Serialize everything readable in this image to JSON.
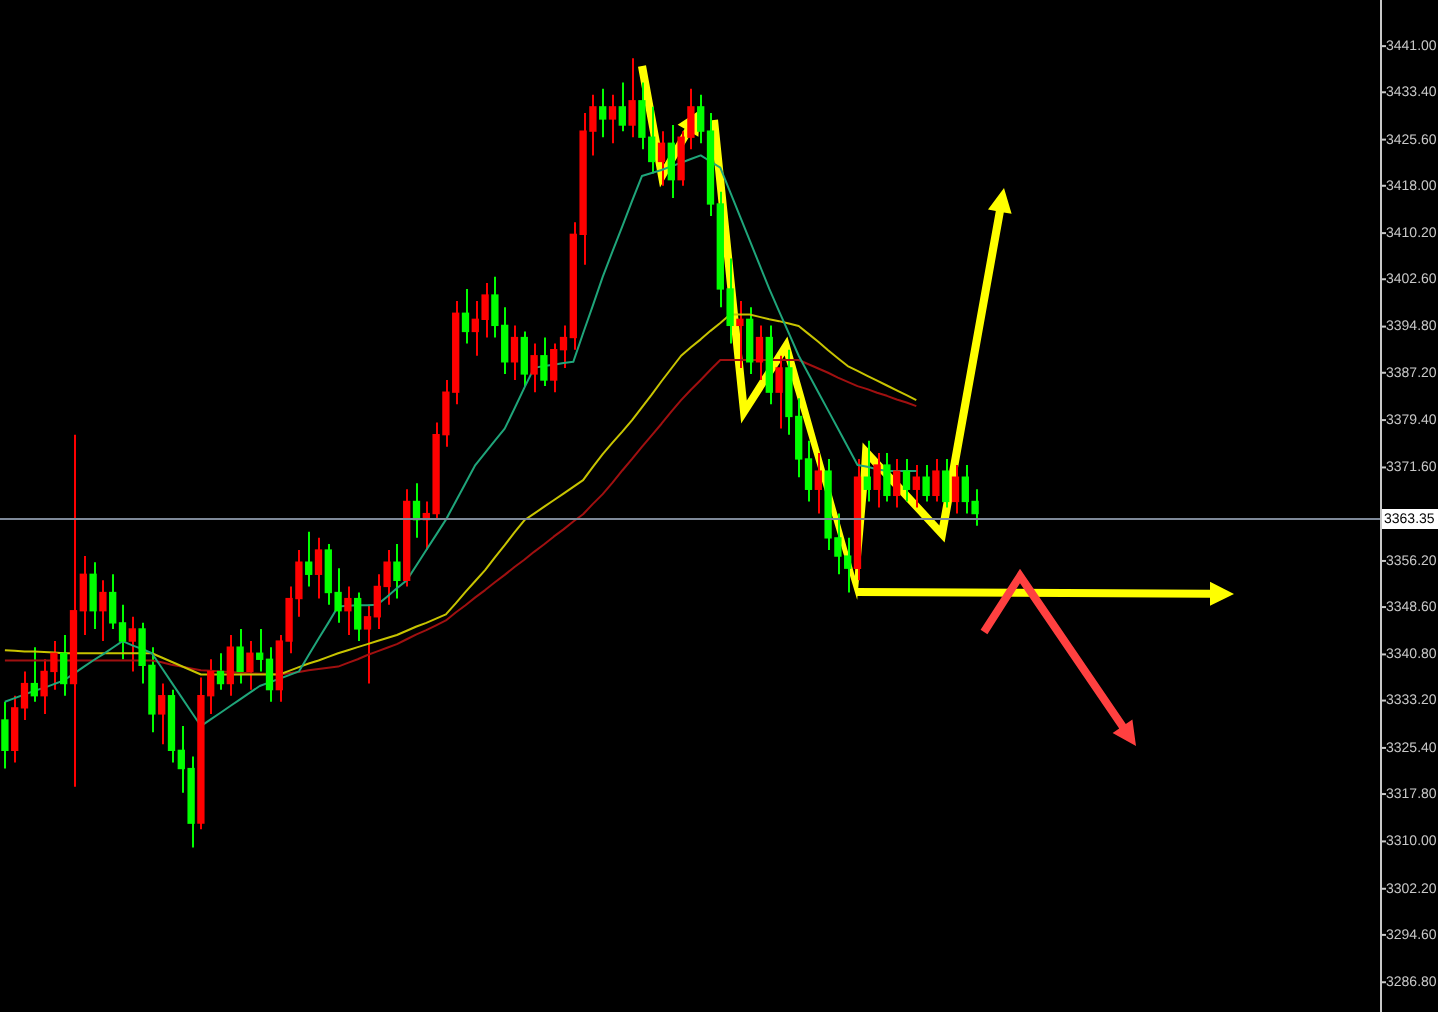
{
  "chart_data": {
    "type": "candlestick",
    "categories": [
      null,
      null,
      null,
      null,
      null,
      null,
      null,
      null,
      null,
      null,
      null,
      null,
      null,
      null,
      null,
      null,
      null,
      null,
      null,
      null,
      null,
      null,
      null,
      null,
      null,
      null,
      null,
      null,
      null,
      null,
      null,
      null,
      null,
      null,
      null,
      null,
      null,
      null,
      null,
      null,
      null,
      null,
      null,
      null,
      null,
      null,
      null,
      null,
      null,
      null,
      null,
      null,
      null,
      null,
      null,
      null,
      null,
      null,
      null,
      null,
      null,
      null,
      null,
      null,
      null,
      null,
      null,
      null,
      null,
      null,
      null,
      null,
      null,
      null,
      null,
      null,
      null,
      null,
      null,
      null,
      null,
      null,
      null,
      null,
      null,
      null,
      null,
      null,
      null,
      null,
      null,
      null,
      null,
      null,
      null,
      null,
      null,
      null,
      null,
      null
    ],
    "ohlc": [
      [
        3330,
        3333,
        3322,
        3325
      ],
      [
        3325,
        3334,
        3323,
        3332
      ],
      [
        3332,
        3338,
        3330,
        3336
      ],
      [
        3336,
        3342,
        3333,
        3334
      ],
      [
        3334,
        3340,
        3331,
        3338
      ],
      [
        3338,
        3343,
        3335,
        3341
      ],
      [
        3341,
        3344,
        3334,
        3336
      ],
      [
        3336,
        3377,
        3319,
        3348
      ],
      [
        3348,
        3357,
        3344,
        3354
      ],
      [
        3354,
        3356,
        3345,
        3348
      ],
      [
        3348,
        3353,
        3343,
        3351
      ],
      [
        3351,
        3354,
        3345,
        3346
      ],
      [
        3346,
        3349,
        3340,
        3343
      ],
      [
        3343,
        3347,
        3338,
        3345
      ],
      [
        3345,
        3346,
        3336,
        3339
      ],
      [
        3339,
        3342,
        3328,
        3331
      ],
      [
        3331,
        3336,
        3326,
        3334
      ],
      [
        3334,
        3335,
        3323,
        3325
      ],
      [
        3325,
        3329,
        3318,
        3322
      ],
      [
        3322,
        3324,
        3309,
        3313
      ],
      [
        3313,
        3337,
        3312,
        3334
      ],
      [
        3334,
        3340,
        3331,
        3338
      ],
      [
        3338,
        3341,
        3335,
        3336
      ],
      [
        3336,
        3344,
        3334,
        3342
      ],
      [
        3342,
        3345,
        3336,
        3338
      ],
      [
        3338,
        3343,
        3335,
        3341
      ],
      [
        3341,
        3345,
        3338,
        3340
      ],
      [
        3340,
        3342,
        3333,
        3335
      ],
      [
        3335,
        3344,
        3333,
        3343
      ],
      [
        3343,
        3352,
        3341,
        3350
      ],
      [
        3350,
        3358,
        3347,
        3356
      ],
      [
        3356,
        3361,
        3352,
        3354
      ],
      [
        3354,
        3360,
        3350,
        3358
      ],
      [
        3358,
        3359,
        3349,
        3351
      ],
      [
        3351,
        3355,
        3346,
        3348
      ],
      [
        3348,
        3352,
        3344,
        3350
      ],
      [
        3350,
        3351,
        3343,
        3345
      ],
      [
        3345,
        3349,
        3336,
        3347
      ],
      [
        3347,
        3354,
        3345,
        3352
      ],
      [
        3352,
        3358,
        3349,
        3356
      ],
      [
        3356,
        3359,
        3350,
        3353
      ],
      [
        3353,
        3368,
        3352,
        3366
      ],
      [
        3366,
        3369,
        3360,
        3363
      ],
      [
        3363,
        3366,
        3358,
        3364
      ],
      [
        3364,
        3379,
        3363,
        3377
      ],
      [
        3377,
        3386,
        3375,
        3384
      ],
      [
        3384,
        3399,
        3382,
        3397
      ],
      [
        3397,
        3401,
        3392,
        3394
      ],
      [
        3394,
        3399,
        3390,
        3396
      ],
      [
        3396,
        3402,
        3393,
        3400
      ],
      [
        3400,
        3403,
        3393,
        3395
      ],
      [
        3395,
        3398,
        3387,
        3389
      ],
      [
        3389,
        3395,
        3386,
        3393
      ],
      [
        3393,
        3394,
        3385,
        3387
      ],
      [
        3387,
        3392,
        3384,
        3390
      ],
      [
        3390,
        3393,
        3385,
        3386
      ],
      [
        3386,
        3392,
        3384,
        3391
      ],
      [
        3391,
        3395,
        3388,
        3393
      ],
      [
        3393,
        3412,
        3391,
        3410
      ],
      [
        3410,
        3430,
        3405,
        3427
      ],
      [
        3427,
        3433,
        3423,
        3431
      ],
      [
        3431,
        3434,
        3426,
        3429
      ],
      [
        3429,
        3433,
        3425,
        3431
      ],
      [
        3431,
        3435,
        3427,
        3428
      ],
      [
        3428,
        3439,
        3426,
        3432
      ],
      [
        3432,
        3435,
        3424,
        3426
      ],
      [
        3426,
        3431,
        3420,
        3422
      ],
      [
        3422,
        3427,
        3418,
        3425
      ],
      [
        3425,
        3428,
        3416,
        3419
      ],
      [
        3419,
        3427,
        3418,
        3426
      ],
      [
        3426,
        3434,
        3424,
        3431
      ],
      [
        3431,
        3433,
        3425,
        3427
      ],
      [
        3427,
        3430,
        3413,
        3415
      ],
      [
        3415,
        3417,
        3398,
        3401
      ],
      [
        3401,
        3406,
        3392,
        3395
      ],
      [
        3395,
        3399,
        3388,
        3396
      ],
      [
        3396,
        3398,
        3387,
        3389
      ],
      [
        3389,
        3395,
        3386,
        3393
      ],
      [
        3393,
        3395,
        3382,
        3384
      ],
      [
        3384,
        3390,
        3378,
        3388
      ],
      [
        3388,
        3391,
        3377,
        3380
      ],
      [
        3380,
        3383,
        3370,
        3373
      ],
      [
        3373,
        3376,
        3366,
        3368
      ],
      [
        3368,
        3374,
        3364,
        3371
      ],
      [
        3371,
        3373,
        3358,
        3360
      ],
      [
        3360,
        3364,
        3354,
        3357
      ],
      [
        3357,
        3360,
        3351,
        3355
      ],
      [
        3355,
        3373,
        3353,
        3370
      ],
      [
        3370,
        3376,
        3366,
        3368
      ],
      [
        3368,
        3374,
        3365,
        3372
      ],
      [
        3372,
        3374,
        3366,
        3367
      ],
      [
        3367,
        3373,
        3365,
        3371
      ],
      [
        3371,
        3373,
        3366,
        3368
      ],
      [
        3368,
        3372,
        3365,
        3370
      ],
      [
        3370,
        3372,
        3366,
        3367
      ],
      [
        3367,
        3373,
        3366,
        3371
      ],
      [
        3371,
        3373,
        3365,
        3366
      ],
      [
        3366,
        3372,
        3364,
        3370
      ],
      [
        3370,
        3372,
        3364,
        3366
      ],
      [
        3366,
        3368,
        3362,
        3364
      ]
    ],
    "colors": [
      "#00ff00",
      "#ff0000",
      "#ff0000",
      "#00ff00",
      "#ff0000",
      "#ff0000",
      "#00ff00",
      "#ff0000",
      "#ff0000",
      "#00ff00",
      "#ff0000",
      "#00ff00",
      "#00ff00",
      "#ff0000",
      "#00ff00",
      "#00ff00",
      "#ff0000",
      "#00ff00",
      "#00ff00",
      "#00ff00",
      "#ff0000",
      "#ff0000",
      "#00ff00",
      "#ff0000",
      "#00ff00",
      "#ff0000",
      "#00ff00",
      "#00ff00",
      "#ff0000",
      "#ff0000",
      "#ff0000",
      "#00ff00",
      "#ff0000",
      "#00ff00",
      "#00ff00",
      "#ff0000",
      "#00ff00",
      "#ff0000",
      "#ff0000",
      "#ff0000",
      "#00ff00",
      "#ff0000",
      "#00ff00",
      "#ff0000",
      "#ff0000",
      "#ff0000",
      "#ff0000",
      "#00ff00",
      "#ff0000",
      "#ff0000",
      "#00ff00",
      "#00ff00",
      "#ff0000",
      "#00ff00",
      "#ff0000",
      "#00ff00",
      "#ff0000",
      "#ff0000",
      "#ff0000",
      "#ff0000",
      "#ff0000",
      "#00ff00",
      "#ff0000",
      "#00ff00",
      "#ff0000",
      "#00ff00",
      "#00ff00",
      "#ff0000",
      "#00ff00",
      "#ff0000",
      "#ff0000",
      "#00ff00",
      "#00ff00",
      "#00ff00",
      "#00ff00",
      "#ff0000",
      "#00ff00",
      "#ff0000",
      "#00ff00",
      "#ff0000",
      "#00ff00",
      "#00ff00",
      "#00ff00",
      "#ff0000",
      "#00ff00",
      "#00ff00",
      "#00ff00",
      "#ff0000",
      "#00ff00",
      "#ff0000",
      "#00ff00",
      "#ff0000",
      "#00ff00",
      "#ff0000",
      "#00ff00",
      "#ff0000",
      "#00ff00",
      "#ff0000",
      "#00ff00",
      "#00ff00"
    ],
    "series": [
      {
        "type": "line",
        "color": "#1fa57a",
        "values": [
          3333,
          3333.6,
          3334.2,
          3334.8,
          3335.3,
          3335.9,
          3336.5,
          3337.6,
          3338.7,
          3339.8,
          3340.8,
          3341.9,
          3343,
          3342.3,
          3341.7,
          3341,
          3338.6,
          3336.2,
          3333.8,
          3331.4,
          3329,
          3330.1,
          3331.2,
          3332.3,
          3333.4,
          3334.5,
          3335.6,
          3336.2,
          3336.8,
          3337.4,
          3338,
          3340.7,
          3343.4,
          3346,
          3348.7,
          3348.8,
          3348.9,
          3348.9,
          3349,
          3350.3,
          3351.7,
          3353,
          3355.5,
          3358,
          3360.5,
          3363,
          3366,
          3369,
          3372,
          3374,
          3376,
          3378,
          3381.3,
          3384.7,
          3388,
          3388.3,
          3388.5,
          3388.8,
          3389,
          3393.7,
          3398.3,
          3403,
          3407.2,
          3411.3,
          3415.5,
          3419.6,
          3420.1,
          3420.6,
          3421.2,
          3421.8,
          3422.4,
          3423,
          3422,
          3421,
          3417,
          3413,
          3409,
          3405,
          3401,
          3397.3,
          3393.7,
          3390,
          3387,
          3384,
          3381,
          3378,
          3375,
          3372,
          3371.7,
          3371.3,
          3371,
          3371,
          3371,
          3371,
          null,
          null,
          null,
          null,
          null,
          null
        ]
      },
      {
        "type": "line",
        "color": "#c8c400",
        "values": [
          3341.5,
          3341.4,
          3341.3,
          3341.3,
          3341.2,
          3341.1,
          3341,
          3341,
          3341,
          3341,
          3341,
          3341,
          3341,
          3341,
          3341,
          3341,
          3340.3,
          3339.6,
          3338.9,
          3338.2,
          3337.5,
          3337.5,
          3337.5,
          3337.5,
          3337.5,
          3337.5,
          3337.5,
          3337.5,
          3337.5,
          3338.1,
          3338.7,
          3339.3,
          3339.8,
          3340.4,
          3341,
          3341.5,
          3342,
          3342.5,
          3343,
          3343.5,
          3344,
          3344.7,
          3345.4,
          3346,
          3346.7,
          3347.4,
          3349.2,
          3351.1,
          3352.9,
          3354.7,
          3356.8,
          3358.8,
          3360.9,
          3362.9,
          3364,
          3365.1,
          3366.2,
          3367.3,
          3368.4,
          3369.5,
          3371.7,
          3373.8,
          3375.7,
          3377.5,
          3379.4,
          3381.5,
          3383.6,
          3385.8,
          3387.9,
          3390,
          3391.4,
          3392.7,
          3394.1,
          3395.4,
          3396.8,
          3396.8,
          3396.8,
          3396.4,
          3396,
          3395.7,
          3395.3,
          3394.9,
          3393.6,
          3392.3,
          3390.9,
          3389.6,
          3388.3,
          3387.5,
          3386.7,
          3385.9,
          3385.1,
          3384.3,
          3383.5,
          3382.7,
          null,
          null,
          null,
          null,
          null,
          null
        ]
      },
      {
        "type": "line",
        "color": "#a01010",
        "values": [
          3339.8,
          3339.8,
          3339.8,
          3339.8,
          3339.8,
          3339.8,
          3339.8,
          3339.8,
          3339.8,
          3339.8,
          3339.8,
          3339.8,
          3339.8,
          3339.8,
          3339.8,
          3339.8,
          3339.5,
          3339.1,
          3338.8,
          3338.5,
          3338.2,
          3338.1,
          3338,
          3337.9,
          3337.8,
          3337.7,
          3337.6,
          3337.6,
          3337.5,
          3337.7,
          3337.9,
          3338.2,
          3338.4,
          3338.6,
          3338.8,
          3339.4,
          3340,
          3340.7,
          3341.3,
          3341.9,
          3342.5,
          3343.3,
          3344.1,
          3344.8,
          3345.6,
          3346.4,
          3347.7,
          3348.9,
          3350.2,
          3351.4,
          3352.7,
          3353.9,
          3355.2,
          3356.4,
          3357.7,
          3358.9,
          3360.2,
          3361.4,
          3362.7,
          3363.9,
          3365.6,
          3367.2,
          3369.1,
          3371.1,
          3373,
          3375,
          3376.9,
          3378.8,
          3380.8,
          3382.7,
          3384.4,
          3386,
          3387.7,
          3389.3,
          3389.3,
          3389.3,
          3389.3,
          3389.3,
          3389.3,
          3389.3,
          3389.3,
          3389.3,
          3388.6,
          3387.9,
          3387.2,
          3386.4,
          3385.7,
          3385,
          3384.5,
          3383.9,
          3383.4,
          3382.8,
          3382.3,
          3381.7,
          null,
          null,
          null,
          null,
          null,
          null
        ]
      }
    ],
    "ylim": [
      3281.9,
      3448.6
    ],
    "yticks": [
      {
        "value": 3441,
        "label": "3441.00"
      },
      {
        "value": 3433.4,
        "label": "3433.40"
      },
      {
        "value": 3425.6,
        "label": "3425.60"
      },
      {
        "value": 3418,
        "label": "3418.00"
      },
      {
        "value": 3410.2,
        "label": "3410.20"
      },
      {
        "value": 3402.6,
        "label": "3402.60"
      },
      {
        "value": 3394.8,
        "label": "3394.80"
      },
      {
        "value": 3387.2,
        "label": "3387.20"
      },
      {
        "value": 3379.4,
        "label": "3379.40"
      },
      {
        "value": 3371.6,
        "label": "3371.60"
      },
      {
        "value": 3356.2,
        "label": "3356.20"
      },
      {
        "value": 3348.6,
        "label": "3348.60"
      },
      {
        "value": 3340.8,
        "label": "3340.80"
      },
      {
        "value": 3333.2,
        "label": "3333.20"
      },
      {
        "value": 3325.4,
        "label": "3325.40"
      },
      {
        "value": 3317.8,
        "label": "3317.80"
      },
      {
        "value": 3310,
        "label": "3310.00"
      },
      {
        "value": 3302.2,
        "label": "3302.20"
      },
      {
        "value": 3294.6,
        "label": "3294.60"
      },
      {
        "value": 3286.8,
        "label": "3286.80"
      }
    ],
    "ref_lines": [
      {
        "axis": "y",
        "value": 3363.35,
        "label": "3363.35",
        "color": "#7f8a99"
      }
    ],
    "tick_labels": "y"
  }
}
